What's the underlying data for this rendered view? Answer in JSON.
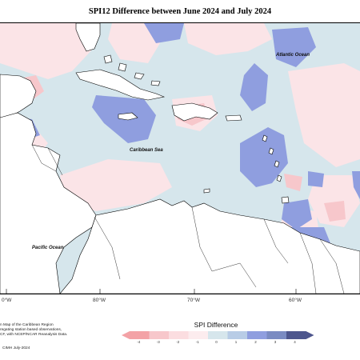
{
  "title": "SPI12 Difference between June 2024 and July 2024",
  "map_labels": {
    "atlantic": "Atlantic Ocean",
    "caribbean": "Caribbean Sea",
    "pacific": "Pacific Ocean"
  },
  "longitudes": [
    "0°W",
    "80°W",
    "70°W",
    "60°W"
  ],
  "note_lines": [
    "n Map of the Caribbean Region",
    "regating station based observations,",
    "CF, with NCEP/NCAR Reanalysis Data."
  ],
  "credit": "CIMH July-2024",
  "legend": {
    "title": "SPI Difference",
    "ticks": [
      "-4",
      "-3",
      "-2",
      "-1",
      "0",
      "1",
      "2",
      "3",
      "4"
    ],
    "colors": [
      "#f3a2a6",
      "#f7c7cb",
      "#fbdde0",
      "#fcecee",
      "#d6e6ec",
      "#b8cce6",
      "#8f9edf",
      "#7a8bc2",
      "#4d568d"
    ]
  }
}
